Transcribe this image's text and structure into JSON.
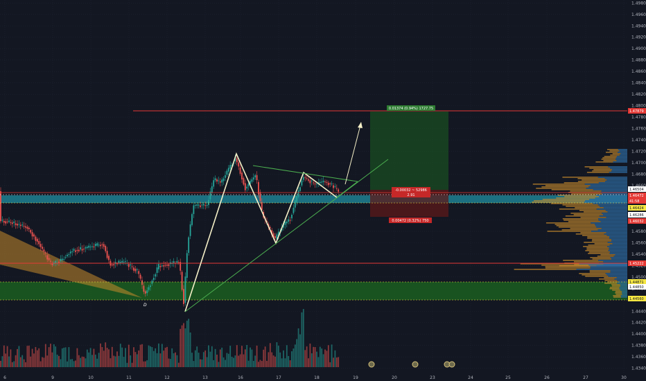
{
  "chart_data": {
    "type": "candlestick",
    "price_axis": {
      "ticks": [
        "1.49800",
        "1.49600",
        "1.49400",
        "1.49200",
        "1.49000",
        "1.48800",
        "1.48600",
        "1.48400",
        "1.48200",
        "1.48000",
        "1.47800",
        "1.47600",
        "1.47400",
        "1.47200",
        "1.47000",
        "1.46800",
        "1.46600",
        "1.46400",
        "1.46200",
        "1.46000",
        "1.45800",
        "1.45600",
        "1.45400",
        "1.45200",
        "1.45000",
        "1.44800",
        "1.44600",
        "1.44400",
        "1.44200",
        "1.44000",
        "1.43800",
        "1.43600",
        "1.43400"
      ],
      "ylim": [
        1.4335,
        1.4985
      ]
    },
    "time_axis": {
      "ticks": [
        "6",
        "9",
        "10",
        "11",
        "12",
        "13",
        "16",
        "17",
        "18",
        "19",
        "20",
        "23",
        "24",
        "25",
        "26",
        "27",
        "30"
      ]
    },
    "price_tags": {
      "target": {
        "text": "1.47879",
        "color": "#e53935"
      },
      "current": {
        "text": "1.46504",
        "color": "#ffffff"
      },
      "entry": {
        "text": "1.46472",
        "color": "#e53935"
      },
      "countdown": {
        "text": "41:58",
        "color": "#e53935"
      },
      "zone_top": {
        "text": "1.46424",
        "color": "#f5e642"
      },
      "zone_mid": {
        "text": "1.46286",
        "color": "#ffffff"
      },
      "stop": {
        "text": "1.46032",
        "color": "#e53935"
      },
      "support": {
        "text": "1.45222",
        "color": "#e53935"
      },
      "demand_top": {
        "text": "1.44871",
        "color": "#f5e642"
      },
      "demand_mid": {
        "text": "1.44850",
        "color": "#ffffff"
      },
      "demand_bottom": {
        "text": "1.44560",
        "color": "#f5e642"
      }
    },
    "position": {
      "target_label": "0.01374 (0.94%) 1727.75",
      "mid_label_1": "-0.00032 ~ 52986",
      "mid_label_2": "2.91",
      "stop_label": "0.00472 (0.32%) 750",
      "target_price": 1.47879,
      "entry_price": 1.46504,
      "stop_price": 1.46032
    },
    "annotations": {
      "pivot_label": "D"
    },
    "colors": {
      "background": "#131722",
      "bull": "#26a69a",
      "bear": "#ef5350",
      "pattern": "#f5f0c8",
      "trendline": "#4caf50",
      "resistance": "#e53935",
      "zone": "#1e7a8c",
      "demand": "#1b5e20",
      "wedge": "#c68a2c"
    },
    "icons": [
      "event-icon",
      "event-icon",
      "event-icon",
      "event-icon"
    ]
  }
}
